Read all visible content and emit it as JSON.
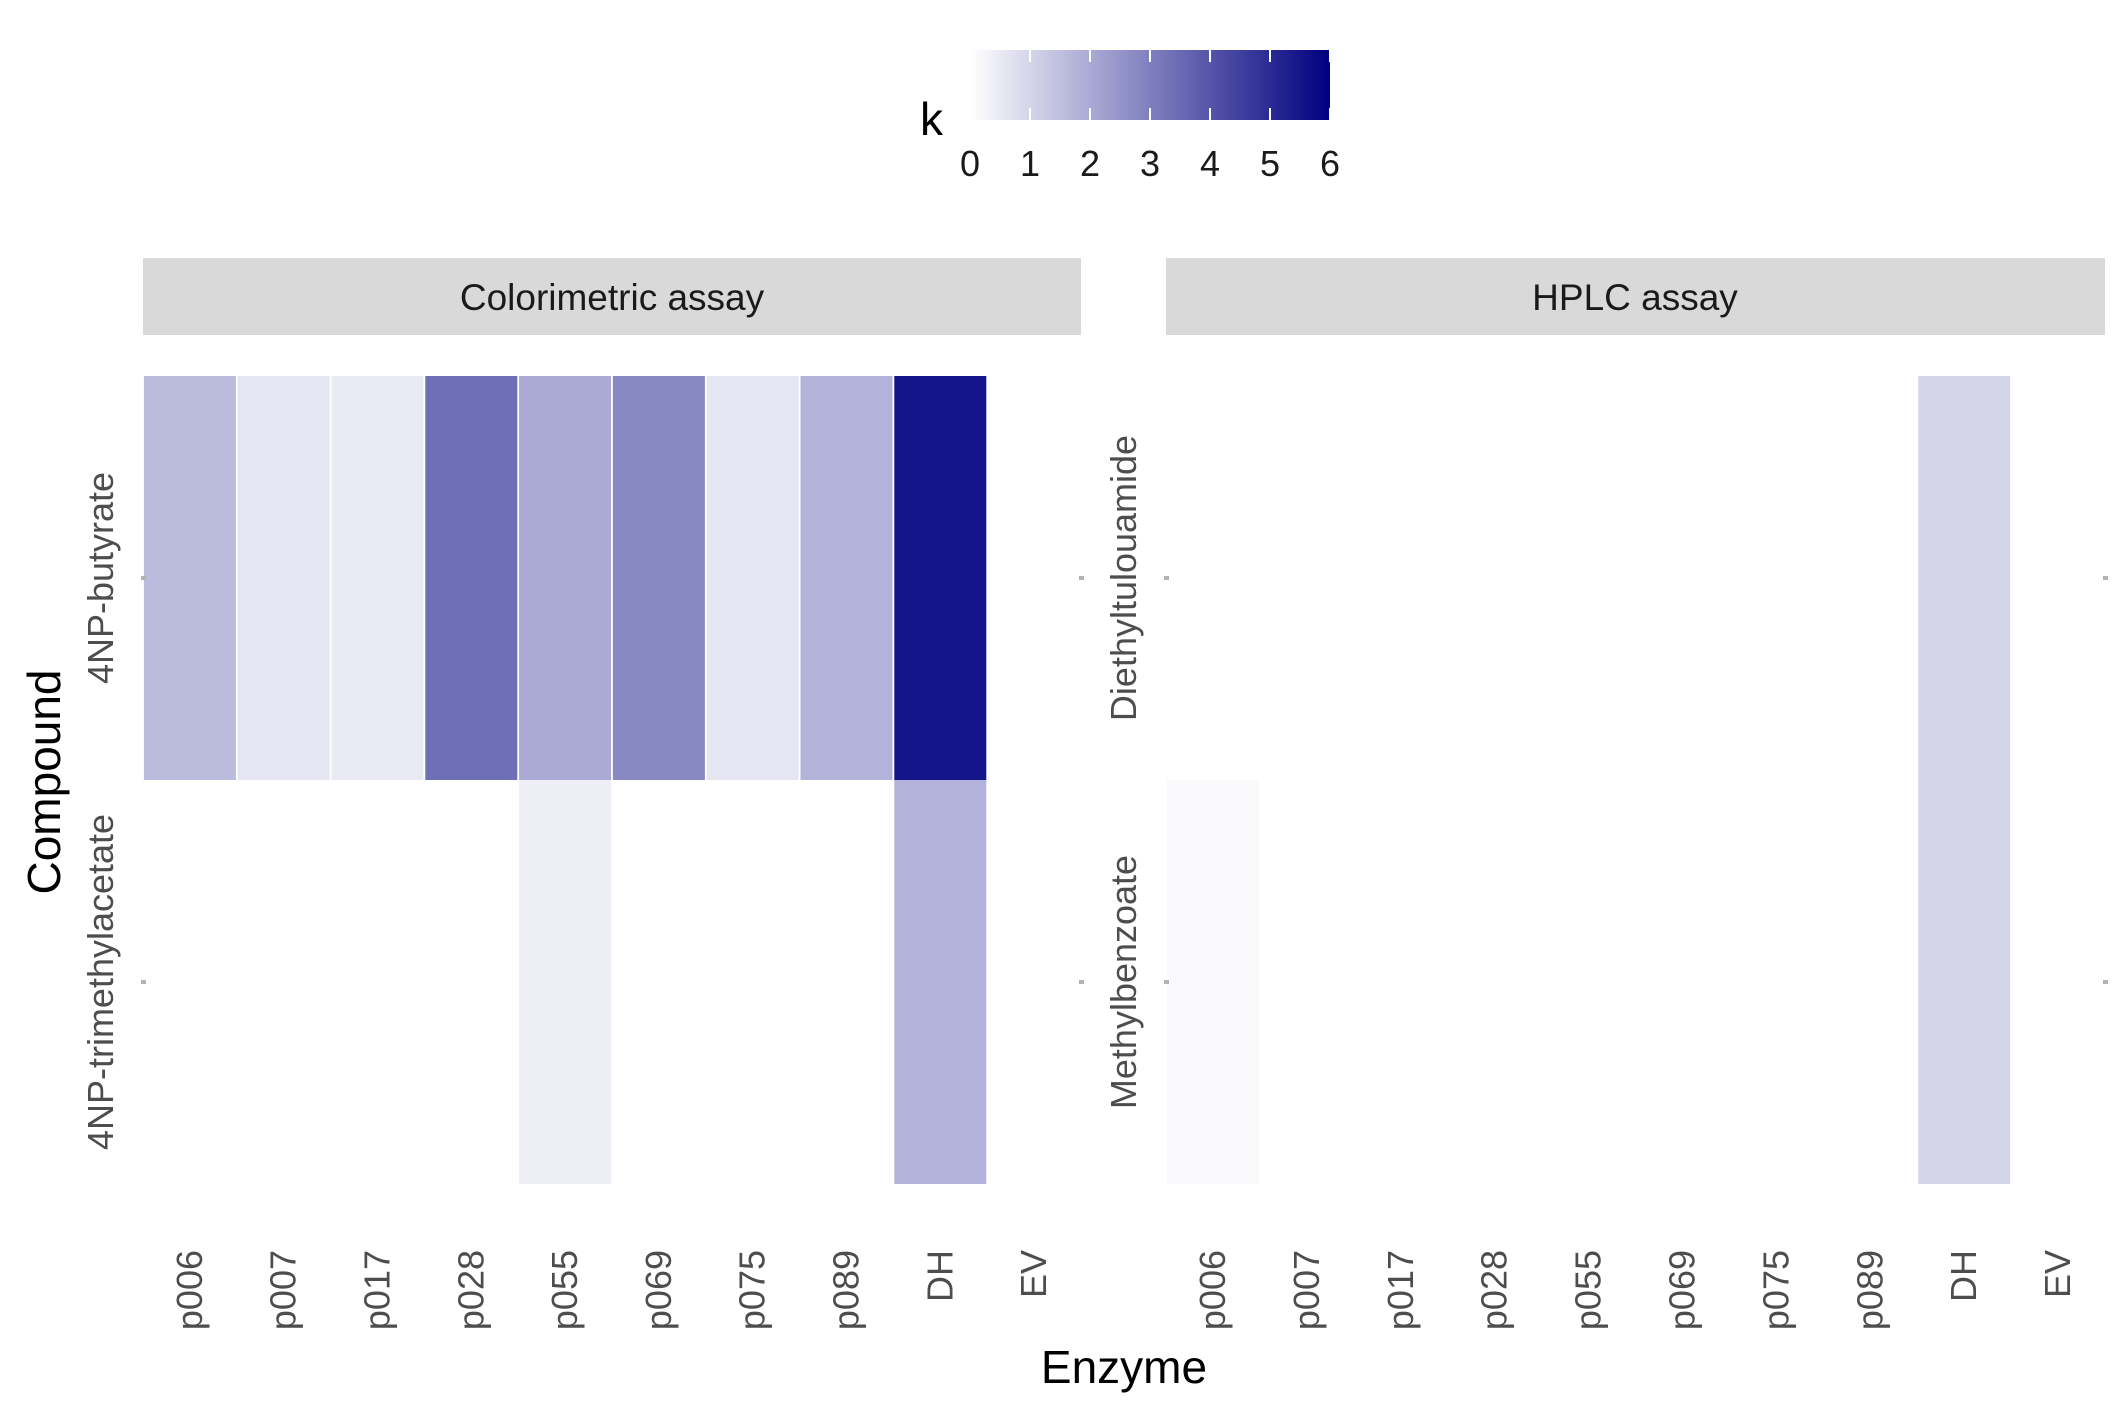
{
  "chart_data": {
    "type": "heatmap",
    "xlabel": "Enzyme",
    "ylabel": "Compound",
    "legend": {
      "title": "k",
      "position": "top",
      "range": [
        0,
        6
      ],
      "ticks": [
        "0",
        "1",
        "2",
        "3",
        "4",
        "5",
        "6"
      ],
      "low_color": "#ffffff",
      "high_color": "#00007f"
    },
    "enzymes": [
      "p006",
      "p007",
      "p017",
      "p028",
      "p055",
      "p069",
      "p075",
      "p089",
      "DH",
      "EV"
    ],
    "panels": [
      {
        "title": "Colorimetric assay",
        "compounds": [
          "4NP-butyrate",
          "4NP-trimethylacetate"
        ],
        "values": [
          [
            1.6,
            0.6,
            0.5,
            3.4,
            2.0,
            2.8,
            0.6,
            1.8,
            5.5,
            0.0
          ],
          [
            0.0,
            0.0,
            0.0,
            0.0,
            0.4,
            0.0,
            0.0,
            0.0,
            1.8,
            0.0
          ]
        ]
      },
      {
        "title": "HPLC assay",
        "compounds": [
          "Diethyltulouamide",
          "Methylbenzoate"
        ],
        "values": [
          [
            0.0,
            0.0,
            0.0,
            0.0,
            0.0,
            0.0,
            0.0,
            0.0,
            1.0,
            0.0
          ],
          [
            0.15,
            0.0,
            0.0,
            0.0,
            0.0,
            0.0,
            0.0,
            0.0,
            1.0,
            0.0
          ]
        ]
      }
    ]
  }
}
